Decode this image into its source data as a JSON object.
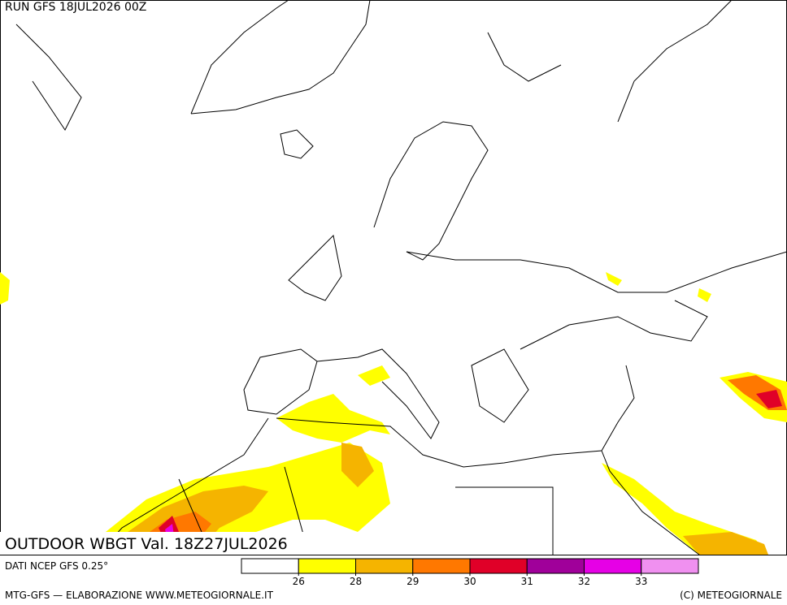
{
  "header": {
    "run": "RUN GFS 18JUL2026 00Z"
  },
  "map": {
    "title": "OUTDOOR WBGT Val. 18Z27JUL2026"
  },
  "footer": {
    "source": "DATI NCEP GFS 0.25°",
    "credit": "MTG-GFS — ELABORAZIONE WWW.METEOGIORNALE.IT",
    "copyright": "(C) METEOGIORNALE"
  },
  "legend": {
    "ticks": [
      26,
      28,
      29,
      30,
      31,
      32,
      33
    ],
    "colors": [
      "#ffffff",
      "#ffff00",
      "#f5b400",
      "#ff7800",
      "#e00028",
      "#a0009a",
      "#e600e6",
      "#f090f0"
    ]
  }
}
